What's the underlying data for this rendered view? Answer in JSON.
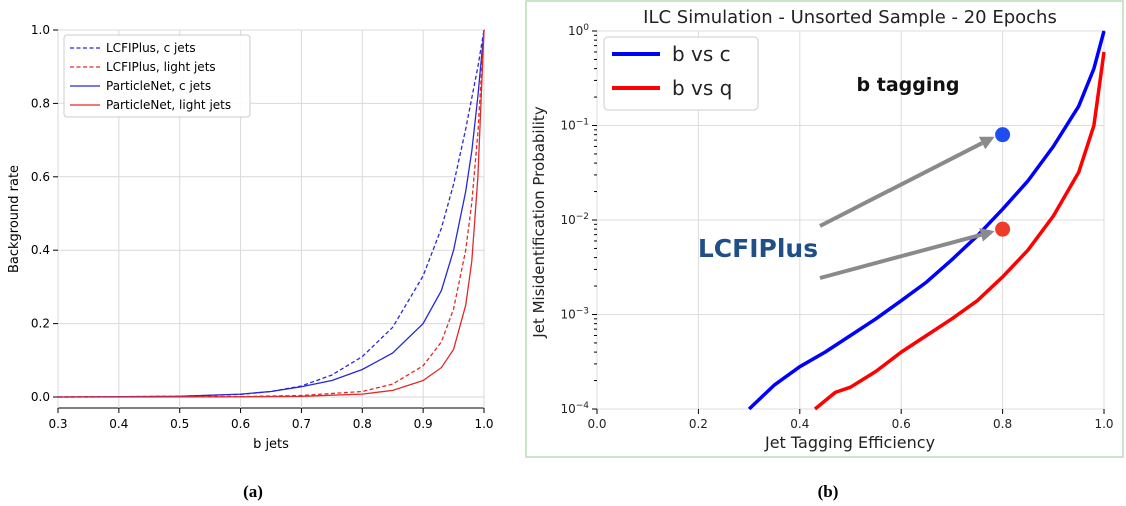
{
  "panel_labels": {
    "a": "(a)",
    "b": "(b)"
  },
  "colors": {
    "blue": "#2828d8",
    "red": "#e02a2a",
    "b_blue": "#0000ff",
    "b_red": "#ff0000",
    "dot_blue": "#1e4ef0",
    "dot_red": "#f03a2a",
    "arrow": "#8a8a8a",
    "lcfi_text": "#1f4f86"
  },
  "chart_data": [
    {
      "id": "a",
      "type": "line",
      "title": "",
      "xlabel": "b jets",
      "ylabel": "Background rate",
      "xlim": [
        0.3,
        1.0
      ],
      "ylim": [
        -0.03,
        1.0
      ],
      "xticks": [
        "0.3",
        "0.4",
        "0.5",
        "0.6",
        "0.7",
        "0.8",
        "0.9",
        "1.0"
      ],
      "yticks": [
        "0.0",
        "0.2",
        "0.4",
        "0.6",
        "0.8",
        "1.0"
      ],
      "grid": true,
      "legend_position": "top-left",
      "series": [
        {
          "name": "LCFIPlus, c jets",
          "color": "blue",
          "style": "dashed",
          "x": [
            0.3,
            0.5,
            0.6,
            0.65,
            0.7,
            0.75,
            0.8,
            0.85,
            0.9,
            0.93,
            0.95,
            0.97,
            0.99,
            1.0
          ],
          "y": [
            0.0,
            0.002,
            0.007,
            0.015,
            0.03,
            0.06,
            0.11,
            0.19,
            0.33,
            0.46,
            0.58,
            0.73,
            0.9,
            1.0
          ]
        },
        {
          "name": "LCFIPlus, light jets",
          "color": "red",
          "style": "dashed",
          "x": [
            0.3,
            0.6,
            0.7,
            0.8,
            0.85,
            0.9,
            0.93,
            0.95,
            0.97,
            0.98,
            0.99,
            1.0
          ],
          "y": [
            0.0,
            0.001,
            0.004,
            0.015,
            0.035,
            0.085,
            0.15,
            0.24,
            0.4,
            0.53,
            0.72,
            1.0
          ]
        },
        {
          "name": "ParticleNet, c jets",
          "color": "blue",
          "style": "solid",
          "x": [
            0.3,
            0.5,
            0.6,
            0.65,
            0.7,
            0.75,
            0.8,
            0.85,
            0.9,
            0.93,
            0.95,
            0.97,
            0.98,
            0.99,
            1.0
          ],
          "y": [
            0.0,
            0.002,
            0.008,
            0.015,
            0.028,
            0.045,
            0.075,
            0.12,
            0.2,
            0.29,
            0.4,
            0.56,
            0.67,
            0.82,
            1.0
          ]
        },
        {
          "name": "ParticleNet, light jets",
          "color": "red",
          "style": "solid",
          "x": [
            0.3,
            0.6,
            0.7,
            0.8,
            0.85,
            0.9,
            0.93,
            0.95,
            0.97,
            0.98,
            0.99,
            1.0
          ],
          "y": [
            0.0,
            0.0005,
            0.002,
            0.008,
            0.018,
            0.045,
            0.08,
            0.13,
            0.25,
            0.37,
            0.6,
            1.0
          ]
        }
      ]
    },
    {
      "id": "b",
      "type": "line",
      "title": "ILC Simulation - Unsorted Sample - 20 Epochs",
      "xlabel": "Jet Tagging Efficiency",
      "ylabel": "Jet Misidentification Probability",
      "xlim": [
        0.0,
        1.0
      ],
      "ylim": [
        0.0001,
        1.0
      ],
      "yscale": "log",
      "xticks": [
        "0.0",
        "0.2",
        "0.4",
        "0.6",
        "0.8",
        "1.0"
      ],
      "yticks": [
        "10^0",
        "10^-1",
        "10^-2",
        "10^-3",
        "10^-4"
      ],
      "grid": true,
      "legend_position": "top-left",
      "annotations": {
        "b_tagging": "b tagging",
        "lcfiplus": "LCFIPlus"
      },
      "series": [
        {
          "name": "b vs c",
          "color": "b_blue",
          "x": [
            0.3,
            0.35,
            0.4,
            0.45,
            0.5,
            0.55,
            0.6,
            0.65,
            0.7,
            0.75,
            0.8,
            0.85,
            0.9,
            0.95,
            0.98,
            1.0
          ],
          "y": [
            0.0001,
            0.00018,
            0.00028,
            0.0004,
            0.0006,
            0.0009,
            0.0014,
            0.0022,
            0.0038,
            0.0068,
            0.013,
            0.026,
            0.06,
            0.16,
            0.4,
            1.0
          ]
        },
        {
          "name": "b vs q",
          "color": "b_red",
          "x": [
            0.43,
            0.47,
            0.5,
            0.55,
            0.6,
            0.65,
            0.7,
            0.75,
            0.8,
            0.85,
            0.9,
            0.95,
            0.98,
            1.0
          ],
          "y": [
            0.0001,
            0.00015,
            0.00017,
            0.00025,
            0.0004,
            0.0006,
            0.0009,
            0.0014,
            0.0025,
            0.0048,
            0.011,
            0.032,
            0.1,
            0.6
          ]
        },
        {
          "name": "",
          "type": "points",
          "x": [
            0.8,
            0.8
          ],
          "y": [
            0.08,
            0.008
          ],
          "colors": [
            "dot_blue",
            "dot_red"
          ]
        }
      ]
    }
  ]
}
